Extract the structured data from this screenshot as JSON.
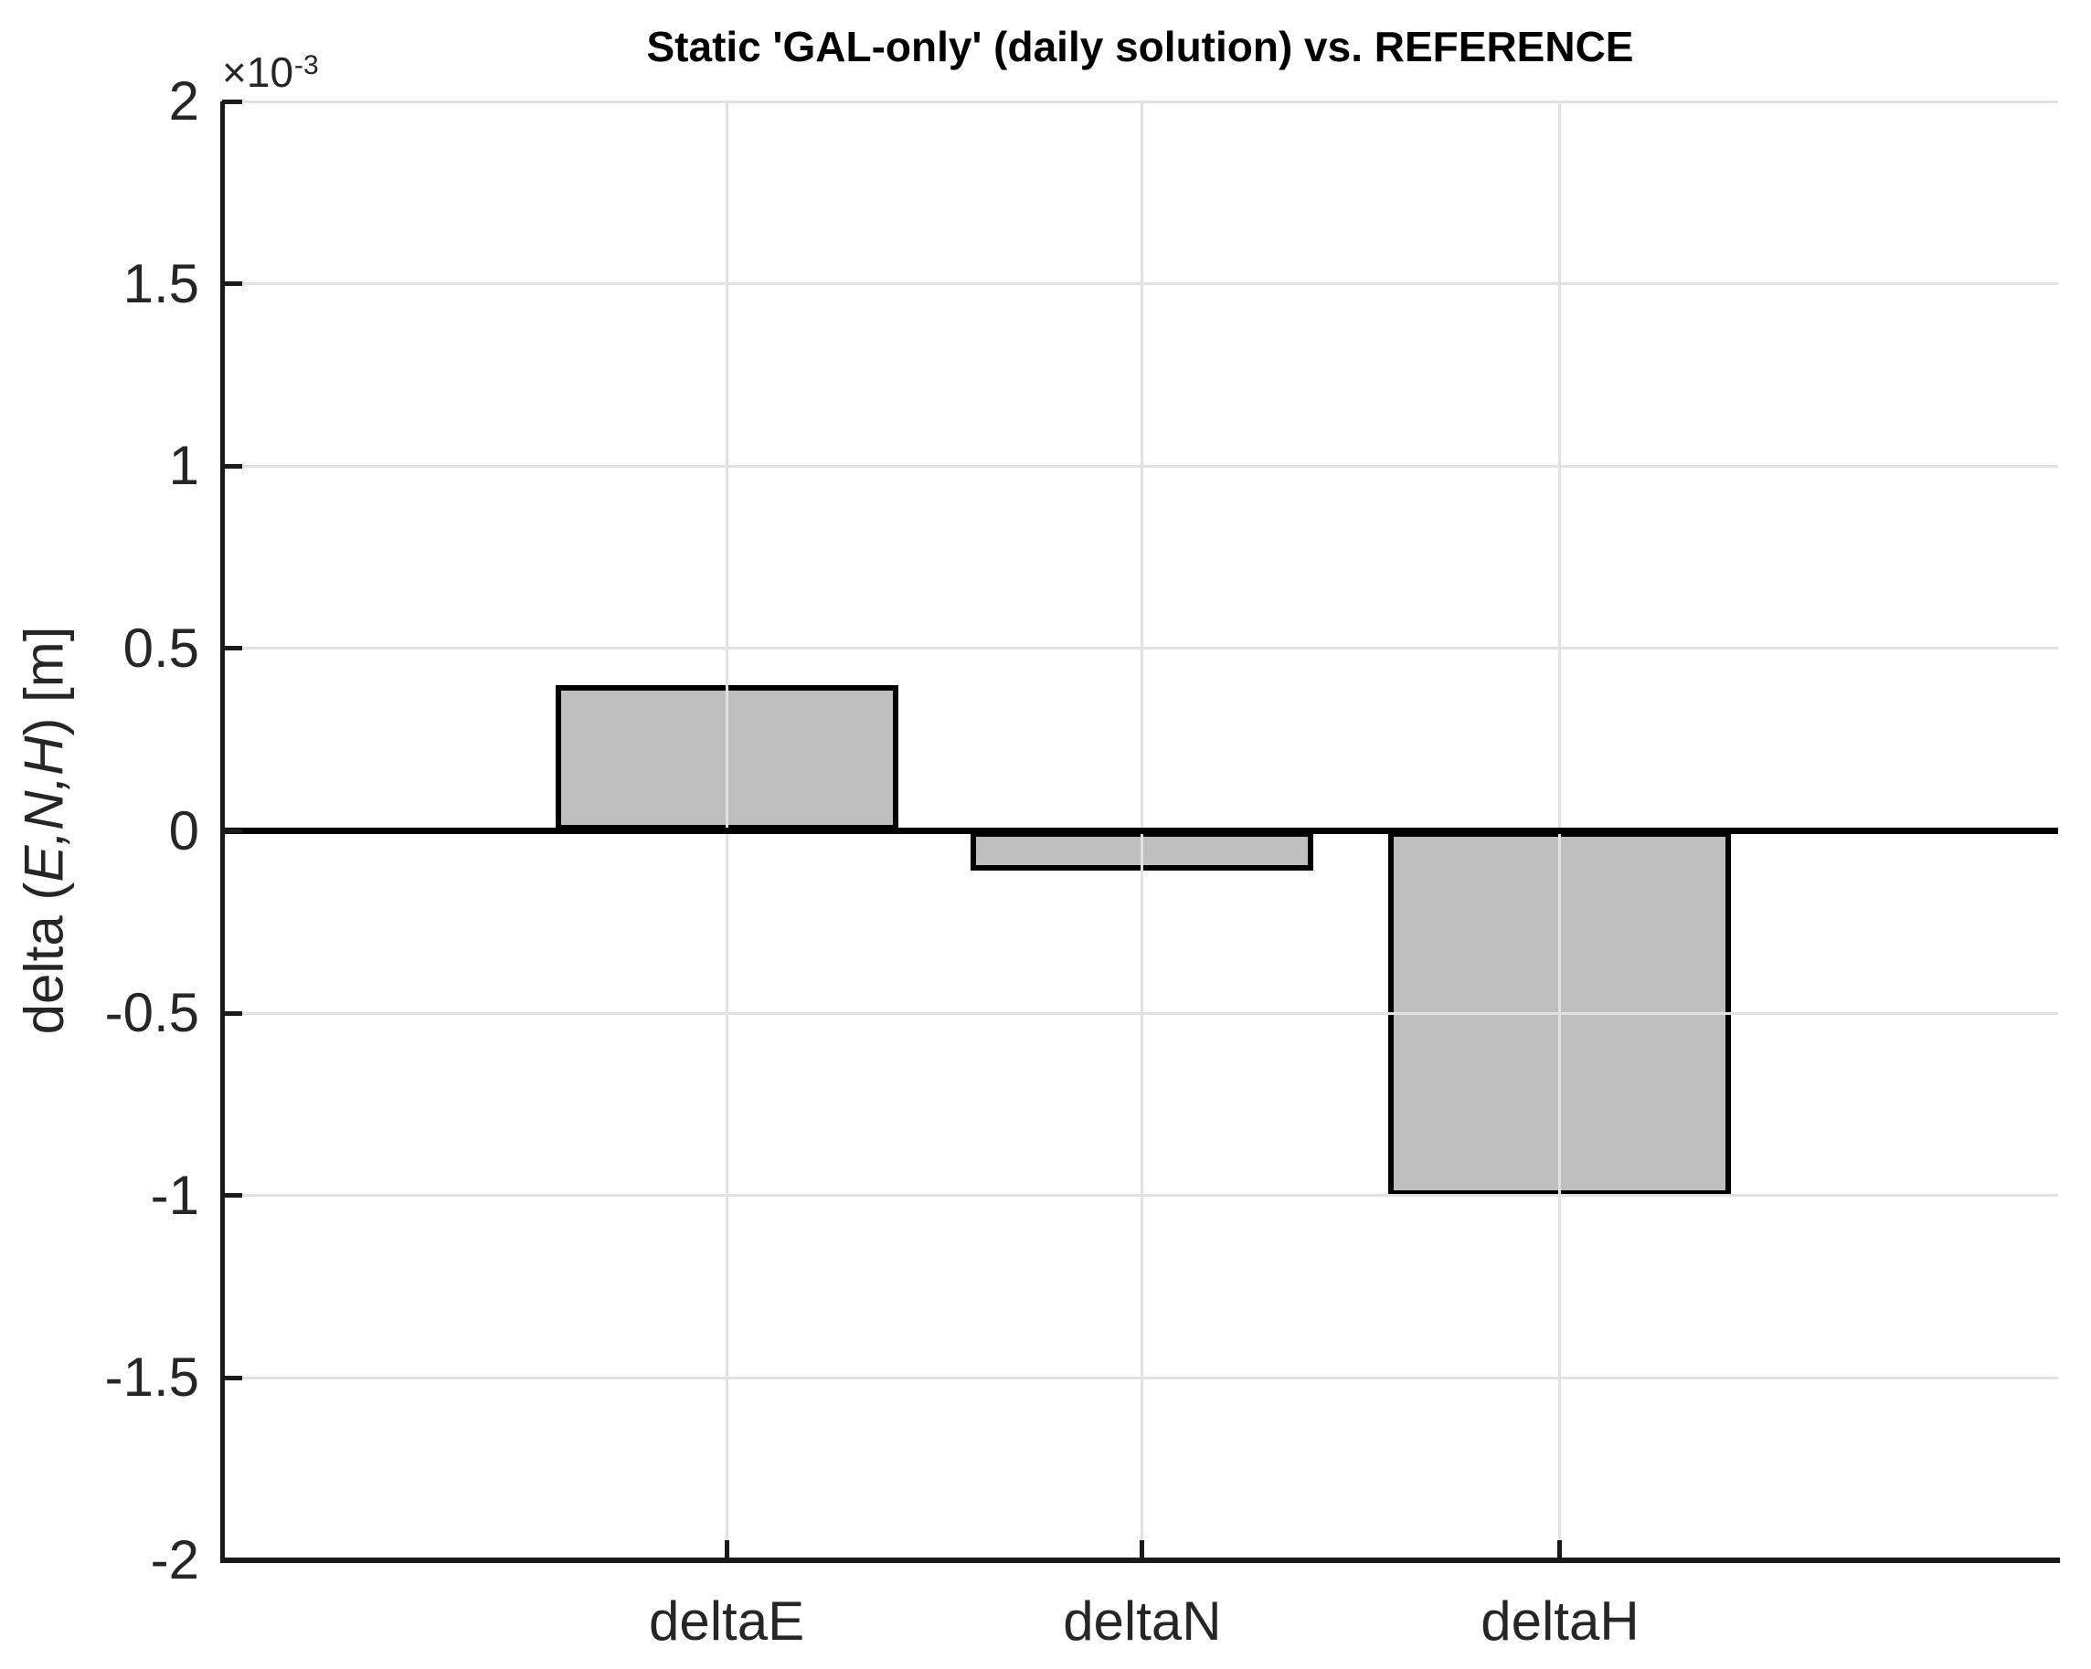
{
  "figure": {
    "background_color": "#ffffff"
  },
  "title": "Static 'GAL-only' (daily solution) vs. REFERENCE",
  "y_exponent": {
    "base": "×10",
    "exponent": "-3"
  },
  "ylabel_parts": {
    "prefix": "delta (",
    "enh": "E,N,H",
    "suffix": ") [m]"
  },
  "chart_data": {
    "type": "bar",
    "title": "Static 'GAL-only' (daily solution) vs. REFERENCE",
    "categories": [
      "deltaE",
      "deltaN",
      "deltaH"
    ],
    "values": [
      0.0004,
      -0.00011,
      -0.001
    ],
    "values_e3": [
      0.4,
      -0.11,
      -1.0
    ],
    "xlabel": "",
    "ylabel": "delta (E,N,H) [m]",
    "y_unit_exponent_label": "×10⁻³",
    "ylim_e3": [
      -2,
      2
    ],
    "yticks_e3": [
      2,
      1.5,
      1,
      0.5,
      0,
      -0.5,
      -1,
      -1.5,
      -2
    ],
    "ytick_labels": [
      "2",
      "1.5",
      "1",
      "0.5",
      "0",
      "-0.5",
      "-1",
      "-1.5",
      "-2"
    ],
    "grid": true,
    "grid_layer": "top",
    "legend": "none",
    "bar_fill_color": "#bfbfbf",
    "bar_edge_color": "#000000",
    "grid_color": "#e2e2e2",
    "axis_color": "#1a1a1a",
    "tick_text_color": "#262626",
    "title_color": "#000000"
  }
}
